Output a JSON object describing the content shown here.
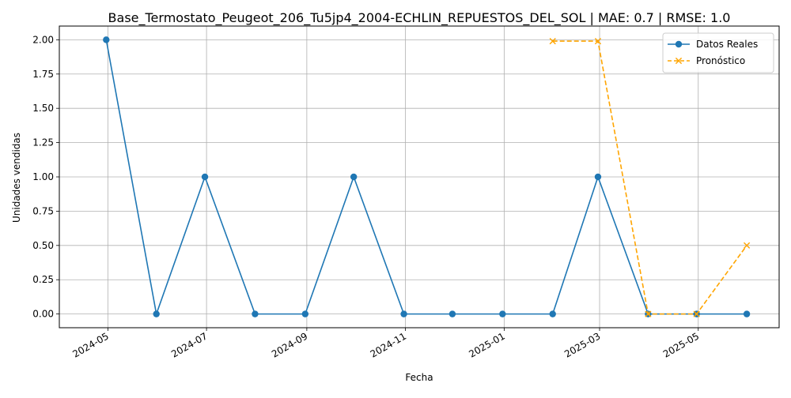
{
  "chart_data": {
    "type": "line",
    "title": "Base_Termostato_Peugeot_206_Tu5jp4_2004-ECHLIN_REPUESTOS_DEL_SOL | MAE: 0.7 | RMSE: 1.0",
    "xlabel": "Fecha",
    "ylabel": "Unidades vendidas",
    "x_tick_labels": [
      "2024-05",
      "2024-07",
      "2024-09",
      "2024-11",
      "2025-01",
      "2025-03",
      "2025-05"
    ],
    "y_ticks": [
      0.0,
      0.25,
      0.5,
      0.75,
      1.0,
      1.25,
      1.5,
      1.75,
      2.0
    ],
    "y_tick_labels": [
      "0.00",
      "0.25",
      "0.50",
      "0.75",
      "1.00",
      "1.25",
      "1.50",
      "1.75",
      "2.00"
    ],
    "xlim": [
      "2024-04-01",
      "2025-06-20"
    ],
    "ylim": [
      -0.1,
      2.1
    ],
    "grid": true,
    "legend_position": "top-right",
    "series": [
      {
        "name": "Datos Reales",
        "color": "#1f77b4",
        "line_style": "solid",
        "marker": "circle",
        "x": [
          "2024-04-30",
          "2024-05-31",
          "2024-06-30",
          "2024-07-31",
          "2024-08-31",
          "2024-09-30",
          "2024-10-31",
          "2024-11-30",
          "2024-12-31",
          "2025-01-31",
          "2025-02-28",
          "2025-03-31",
          "2025-04-30",
          "2025-05-31"
        ],
        "values": [
          2,
          0,
          1,
          0,
          0,
          1,
          0,
          0,
          0,
          0,
          1,
          0,
          0,
          0
        ]
      },
      {
        "name": "Pronóstico",
        "color": "#ffa500",
        "line_style": "dashed",
        "marker": "x",
        "x": [
          "2025-01-31",
          "2025-02-28",
          "2025-03-31",
          "2025-04-30",
          "2025-05-31"
        ],
        "values": [
          1.99,
          1.99,
          0,
          0,
          0.5
        ]
      }
    ]
  }
}
